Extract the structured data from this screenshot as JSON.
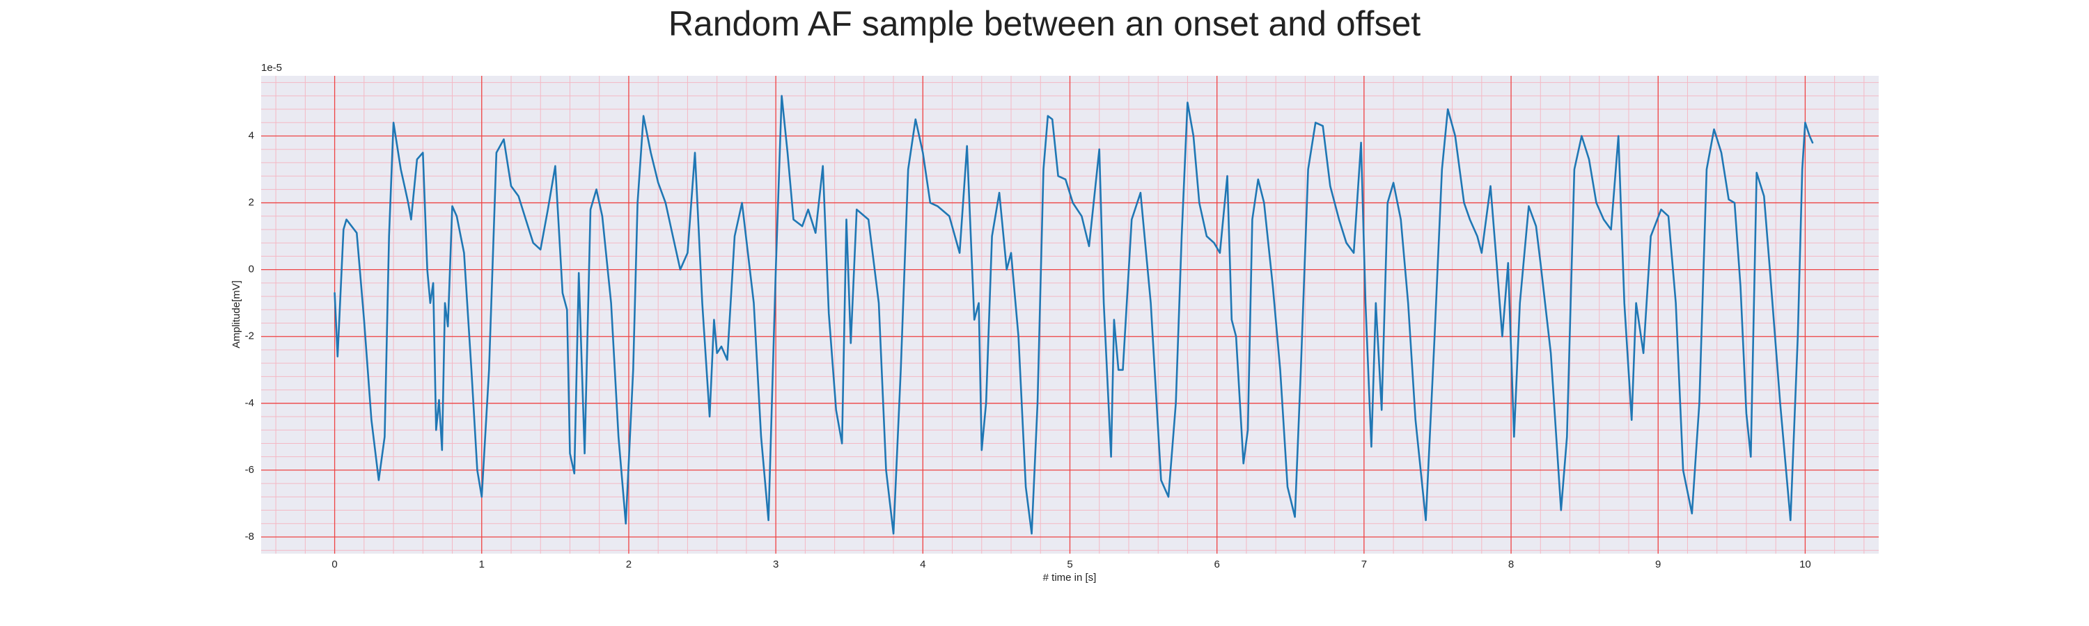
{
  "chart_data": {
    "type": "line",
    "title": "Random AF sample between an onset and offset",
    "xlabel": "# time in [s]",
    "ylabel": "Amplitude[mV]",
    "y_offset_label": "1e-5",
    "color": "#1f77b4",
    "grid": true,
    "grid_color": "#ee4444",
    "minor_grid": true,
    "xlim": [
      -0.5,
      10.5
    ],
    "ylim": [
      -8.5,
      5.8
    ],
    "xticks": [
      0,
      1,
      2,
      3,
      4,
      5,
      6,
      7,
      8,
      9,
      10
    ],
    "yticks": [
      -8,
      -6,
      -4,
      -2,
      0,
      2,
      4
    ],
    "x": [
      0,
      0.02,
      0.06,
      0.08,
      0.15,
      0.2,
      0.25,
      0.3,
      0.34,
      0.37,
      0.4,
      0.45,
      0.48,
      0.5,
      0.52,
      0.56,
      0.6,
      0.63,
      0.65,
      0.67,
      0.69,
      0.71,
      0.73,
      0.75,
      0.77,
      0.8,
      0.83,
      0.88,
      0.93,
      0.97,
      1,
      1.05,
      1.1,
      1.15,
      1.2,
      1.25,
      1.3,
      1.35,
      1.4,
      1.45,
      1.5,
      1.55,
      1.58,
      1.6,
      1.63,
      1.66,
      1.7,
      1.74,
      1.78,
      1.82,
      1.88,
      1.93,
      1.98,
      2.03,
      2.06,
      2.1,
      2.15,
      2.2,
      2.25,
      2.3,
      2.35,
      2.4,
      2.45,
      2.5,
      2.55,
      2.58,
      2.6,
      2.63,
      2.67,
      2.72,
      2.77,
      2.85,
      2.9,
      2.95,
      3,
      3.04,
      3.08,
      3.12,
      3.18,
      3.22,
      3.27,
      3.32,
      3.36,
      3.41,
      3.45,
      3.48,
      3.51,
      3.55,
      3.63,
      3.7,
      3.75,
      3.8,
      3.85,
      3.9,
      3.95,
      4,
      4.05,
      4.1,
      4.18,
      4.25,
      4.3,
      4.35,
      4.38,
      4.4,
      4.43,
      4.47,
      4.52,
      4.57,
      4.6,
      4.65,
      4.7,
      4.74,
      4.78,
      4.82,
      4.85,
      4.88,
      4.92,
      4.97,
      5.02,
      5.08,
      5.13,
      5.2,
      5.23,
      5.28,
      5.3,
      5.33,
      5.36,
      5.42,
      5.48,
      5.55,
      5.62,
      5.67,
      5.72,
      5.76,
      5.8,
      5.84,
      5.88,
      5.93,
      5.98,
      6.02,
      6.07,
      6.1,
      6.13,
      6.18,
      6.21,
      6.24,
      6.28,
      6.32,
      6.38,
      6.43,
      6.48,
      6.53,
      6.57,
      6.62,
      6.67,
      6.72,
      6.77,
      6.83,
      6.88,
      6.93,
      6.98,
      7.01,
      7.05,
      7.08,
      7.12,
      7.16,
      7.2,
      7.25,
      7.3,
      7.35,
      7.42,
      7.48,
      7.53,
      7.57,
      7.62,
      7.68,
      7.72,
      7.77,
      7.8,
      7.86,
      7.9,
      7.94,
      7.98,
      8.02,
      8.06,
      8.12,
      8.17,
      8.2,
      8.27,
      8.34,
      8.38,
      8.43,
      8.48,
      8.53,
      8.58,
      8.63,
      8.68,
      8.73,
      8.77,
      8.82,
      8.85,
      8.9,
      8.95,
      9.02,
      9.07,
      9.12,
      9.17,
      9.23,
      9.28,
      9.33,
      9.38,
      9.43,
      9.48,
      9.52,
      9.56,
      9.6,
      9.63,
      9.67,
      9.72,
      9.76,
      9.83,
      9.9,
      9.95,
      9.98,
      10,
      10.03,
      10.05
    ],
    "values": [
      -0.7,
      -2.6,
      1.2,
      1.5,
      1.1,
      -1.5,
      -4.5,
      -6.3,
      -5,
      1,
      4.4,
      3,
      2.4,
      2,
      1.5,
      3.3,
      3.5,
      0,
      -1,
      -0.4,
      -4.8,
      -3.9,
      -5.4,
      -1,
      -1.7,
      1.9,
      1.6,
      0.5,
      -3,
      -6,
      -6.8,
      -3,
      3.5,
      3.9,
      2.5,
      2.2,
      1.5,
      0.8,
      0.6,
      1.8,
      3.1,
      -0.7,
      -1.2,
      -5.5,
      -6.1,
      -0.1,
      -5.5,
      1.8,
      2.4,
      1.6,
      -1,
      -5,
      -7.6,
      -3,
      2,
      4.6,
      3.5,
      2.6,
      2,
      1,
      0,
      0.5,
      3.5,
      -1,
      -4.4,
      -1.5,
      -2.5,
      -2.3,
      -2.7,
      1,
      2,
      -1,
      -5,
      -7.5,
      0,
      5.2,
      3.5,
      1.5,
      1.3,
      1.8,
      1.1,
      3.1,
      -1.3,
      -4.2,
      -5.2,
      1.5,
      -2.2,
      1.8,
      1.5,
      -1,
      -6,
      -7.9,
      -3,
      3,
      4.5,
      3.5,
      2,
      1.9,
      1.6,
      0.5,
      3.7,
      -1.5,
      -1,
      -5.4,
      -4,
      1,
      2.3,
      0,
      0.5,
      -2,
      -6.5,
      -7.9,
      -4,
      3,
      4.6,
      4.5,
      2.8,
      2.7,
      2,
      1.6,
      0.7,
      3.6,
      -1,
      -5.6,
      -1.5,
      -3,
      -3,
      1.5,
      2.3,
      -1,
      -6.3,
      -6.8,
      -4,
      1,
      5,
      4,
      2,
      1,
      0.8,
      0.5,
      2.8,
      -1.5,
      -2,
      -5.8,
      -4.8,
      1.5,
      2.7,
      2,
      -0.5,
      -3,
      -6.5,
      -7.4,
      -3,
      3,
      4.4,
      4.3,
      2.5,
      1.5,
      0.8,
      0.5,
      3.8,
      -1,
      -5.3,
      -1,
      -4.2,
      2,
      2.6,
      1.5,
      -1,
      -4.5,
      -7.5,
      -2,
      3,
      4.8,
      4,
      2,
      1.5,
      1,
      0.5,
      2.5,
      0.3,
      -2,
      0.2,
      -5,
      -1,
      1.9,
      1.3,
      0.2,
      -2.5,
      -7.2,
      -5,
      3,
      4,
      3.3,
      2,
      1.5,
      1.2,
      4,
      -1,
      -4.5,
      -1,
      -2.5,
      1,
      1.8,
      1.6,
      -1,
      -6,
      -7.3,
      -4,
      3,
      4.2,
      3.5,
      2.1,
      2,
      -0.5,
      -4.3,
      -5.6,
      2.9,
      2.2,
      0,
      -4,
      -7.5,
      -2,
      3,
      4.4,
      4,
      3.8
    ]
  }
}
